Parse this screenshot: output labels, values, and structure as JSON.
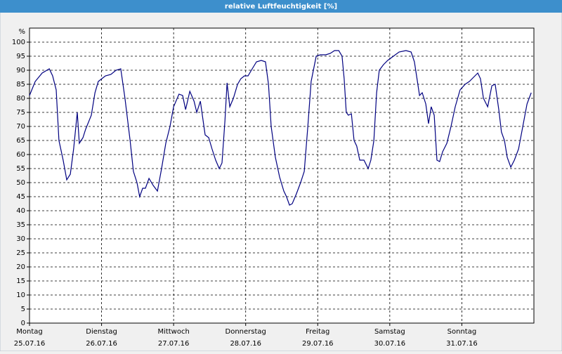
{
  "chart_data": {
    "type": "line",
    "title": "relative Luftfeuchtigkeit [%]",
    "y_unit": "%",
    "xlim": [
      0,
      168
    ],
    "ylim": [
      0,
      105
    ],
    "xticks": [
      {
        "value": 0,
        "label": "Montag",
        "date": "25.07.16"
      },
      {
        "value": 24,
        "label": "Dienstag",
        "date": "26.07.16"
      },
      {
        "value": 48,
        "label": "Mittwoch",
        "date": "27.07.16"
      },
      {
        "value": 72,
        "label": "Donnerstag",
        "date": "28.07.16"
      },
      {
        "value": 96,
        "label": "Freitag",
        "date": "29.07.16"
      },
      {
        "value": 120,
        "label": "Samstag",
        "date": "30.07.16"
      },
      {
        "value": 144,
        "label": "Sonntag",
        "date": "31.07.16"
      }
    ],
    "yticks": [
      0,
      5,
      10,
      15,
      20,
      25,
      30,
      35,
      40,
      45,
      50,
      55,
      60,
      65,
      70,
      75,
      80,
      85,
      90,
      95,
      100
    ],
    "grid": true,
    "series": [
      {
        "color": "#000080",
        "x": [
          0,
          1.9,
          4.2,
          6.6,
          7.7,
          8.9,
          9.8,
          11.2,
          12.4,
          13.6,
          14.7,
          15.9,
          16.6,
          17.8,
          18.7,
          20.6,
          21.8,
          22.9,
          24.1,
          25.3,
          27.1,
          28.8,
          30.4,
          31.8,
          33.5,
          34.6,
          35.8,
          36.7,
          37.7,
          38.6,
          39.8,
          41.2,
          42.6,
          44,
          45.4,
          46.8,
          48,
          49.8,
          51,
          52,
          53.4,
          54.8,
          55.7,
          56.9,
          58.5,
          59.7,
          60.8,
          62,
          63.2,
          64.1,
          65.1,
          65.8,
          66.7,
          67.9,
          69.3,
          70.4,
          71.6,
          72.8,
          73.9,
          75.6,
          77.2,
          78.6,
          79.6,
          80.5,
          81.9,
          83.3,
          84.7,
          85.6,
          86.6,
          87.5,
          88.9,
          90.3,
          91.5,
          92.7,
          93.8,
          95.5,
          96.9,
          98.7,
          100.2,
          101.6,
          103,
          104.1,
          104.8,
          105.5,
          106.2,
          107.2,
          108.1,
          109,
          110,
          111.4,
          112.8,
          113.7,
          114.7,
          115.6,
          116.5,
          117.9,
          119.3,
          121.2,
          123.1,
          125.4,
          127.1,
          128.2,
          129.2,
          129.9,
          130.8,
          132,
          132.9,
          133.8,
          134.8,
          135.7,
          136.6,
          137.6,
          139,
          140.4,
          141.8,
          143.4,
          145.1,
          146.5,
          147.9,
          149.3,
          150.2,
          151.2,
          152.6,
          154,
          155.1,
          156.3,
          157.2,
          158.2,
          159.1,
          160.3,
          161.5,
          162.9,
          164.3,
          165.7,
          167.1
        ],
        "values": [
          81,
          86,
          89,
          90.5,
          88,
          83,
          65,
          58,
          51,
          53,
          62,
          75,
          64,
          66,
          69,
          74,
          82,
          86,
          87,
          88,
          88.5,
          90,
          90.5,
          80,
          65,
          54,
          50,
          45,
          48,
          48,
          51.5,
          49,
          47,
          55,
          64,
          70,
          77,
          81.5,
          81,
          76,
          82.5,
          79,
          75,
          79,
          67,
          66,
          62,
          58,
          55,
          57,
          72,
          85.5,
          77,
          80,
          85,
          87,
          88,
          88,
          90,
          93,
          93.5,
          93,
          85,
          70,
          59,
          52,
          47,
          45,
          42,
          42.5,
          46,
          50,
          54,
          70,
          86,
          95,
          95.5,
          95.5,
          96,
          97,
          97,
          95,
          87,
          75,
          74,
          74.5,
          65,
          63,
          58,
          58,
          55,
          58,
          65,
          82,
          90,
          92,
          93.5,
          95,
          96.5,
          97,
          96.5,
          93,
          86,
          81,
          82,
          78,
          71,
          77,
          74,
          58,
          57.5,
          61,
          64,
          70,
          77,
          83,
          85,
          86,
          87.5,
          89,
          87,
          80,
          77,
          84.5,
          85,
          76,
          68,
          65,
          59,
          55.5,
          58,
          62,
          70,
          78,
          82
        ]
      }
    ]
  }
}
